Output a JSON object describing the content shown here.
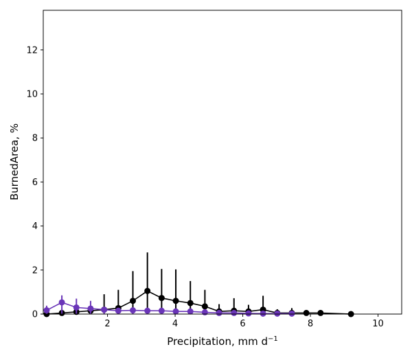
{
  "chart_data": {
    "type": "line",
    "title": "",
    "xlabel": "Precipitation,  mm d",
    "xlabel_exponent": "−1",
    "ylabel": "BurnedArea,  %",
    "xlim": [
      0.1,
      10.7
    ],
    "ylim": [
      0,
      13.8
    ],
    "xticks": [
      2,
      4,
      6,
      8,
      10
    ],
    "yticks": [
      0,
      2,
      4,
      6,
      8,
      10,
      12
    ],
    "grid": false,
    "series": [
      {
        "name": "black",
        "color": "#000000",
        "x": [
          0.2,
          0.65,
          1.08,
          1.5,
          1.9,
          2.32,
          2.75,
          3.18,
          3.6,
          4.02,
          4.45,
          4.88,
          5.3,
          5.74,
          6.17,
          6.6,
          7.02,
          7.45,
          7.88,
          8.3,
          9.2
        ],
        "y": [
          0.0,
          0.05,
          0.1,
          0.15,
          0.2,
          0.27,
          0.6,
          1.05,
          0.73,
          0.6,
          0.5,
          0.35,
          0.12,
          0.15,
          0.12,
          0.2,
          0.05,
          0.05,
          0.05,
          0.05,
          0.0
        ],
        "err_hi": [
          0.0,
          0.1,
          0.2,
          0.3,
          0.9,
          1.1,
          1.95,
          2.8,
          2.05,
          2.03,
          1.5,
          1.1,
          0.45,
          0.72,
          0.42,
          0.83,
          0.22,
          0.27,
          0.07,
          0.1,
          0.05
        ]
      },
      {
        "name": "purple",
        "color": "#6a35b8",
        "x": [
          0.2,
          0.65,
          1.08,
          1.5,
          1.9,
          2.32,
          2.75,
          3.18,
          3.6,
          4.02,
          4.45,
          4.88,
          5.3,
          5.74,
          6.17,
          6.6,
          7.02,
          7.45
        ],
        "y": [
          0.17,
          0.53,
          0.3,
          0.25,
          0.2,
          0.15,
          0.17,
          0.15,
          0.15,
          0.12,
          0.12,
          0.08,
          0.05,
          0.05,
          0.03,
          0.02,
          0.02,
          0.02
        ],
        "err_hi": [
          0.38,
          0.85,
          0.7,
          0.6,
          0.3,
          0.2,
          0.2,
          0.18,
          0.18,
          0.15,
          0.15,
          0.1,
          0.08,
          0.07,
          0.05,
          0.03,
          0.03,
          0.03
        ]
      }
    ]
  }
}
